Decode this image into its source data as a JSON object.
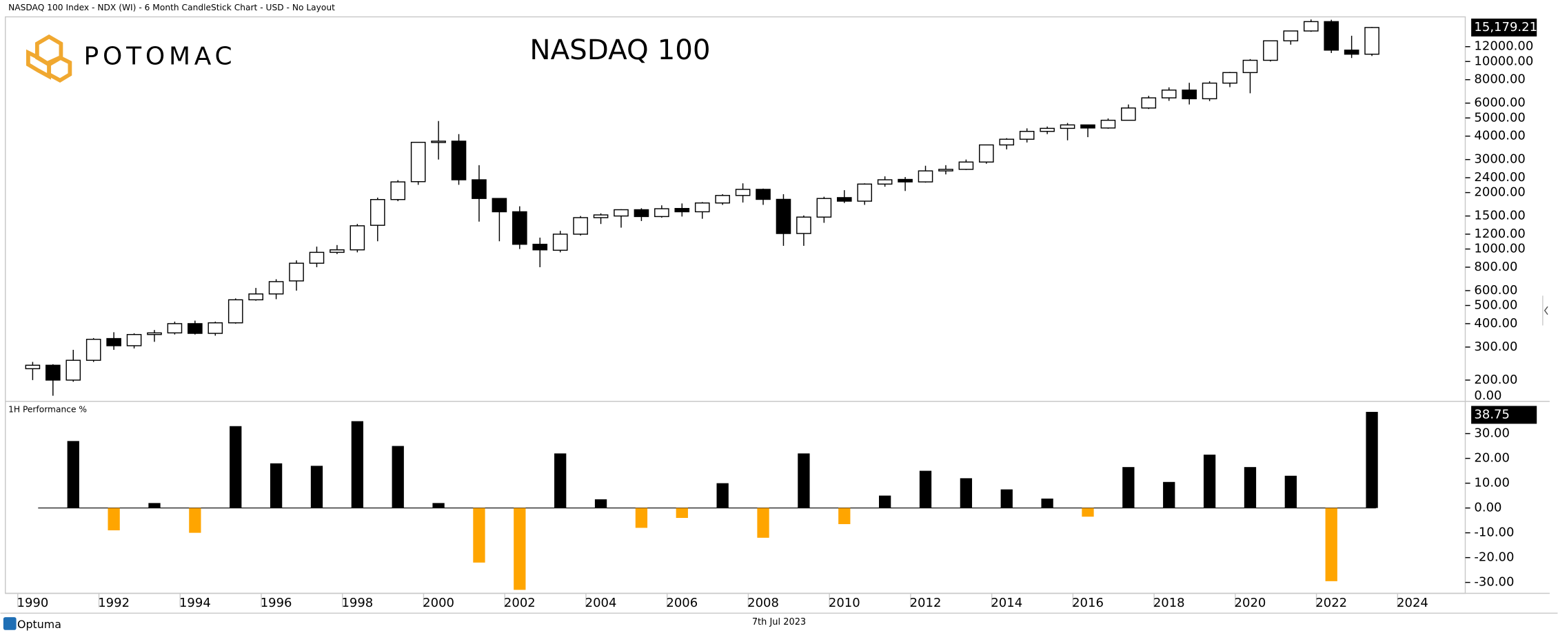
{
  "header": "NASDAQ 100 Index - NDX (WI) - 6 Month CandleStick Chart - USD - No Layout",
  "brand": "POTOMAC",
  "footer_brand": "Optuma",
  "date": "7th Jul 2023",
  "chart_data": [
    {
      "type": "candlestick",
      "title": "NASDAQ 100",
      "log_scale": true,
      "rising_color": "#ffffff",
      "falling_color": "#000000",
      "x": [
        1990,
        1990.5,
        1991,
        1991.5,
        1992,
        1992.5,
        1993,
        1993.5,
        1994,
        1994.5,
        1995,
        1995.5,
        1996,
        1996.5,
        1997,
        1997.5,
        1998,
        1998.5,
        1999,
        1999.5,
        2000,
        2000.5,
        2001,
        2001.5,
        2002,
        2002.5,
        2003,
        2003.5,
        2004,
        2004.5,
        2005,
        2005.5,
        2006,
        2006.5,
        2007,
        2007.5,
        2008,
        2008.5,
        2009,
        2009.5,
        2010,
        2010.5,
        2011,
        2011.5,
        2012,
        2012.5,
        2013,
        2013.5,
        2014,
        2014.5,
        2015,
        2015.5,
        2016,
        2016.5,
        2017,
        2017.5,
        2018,
        2018.5,
        2019,
        2019.5,
        2020,
        2020.5,
        2021,
        2021.5,
        2022,
        2022.5,
        2023
      ],
      "open": [
        230,
        240,
        200,
        255,
        333,
        305,
        350,
        357,
        400,
        355,
        404,
        536,
        576,
        676,
        840,
        960,
        990,
        1338,
        1836,
        2287,
        3700,
        3760,
        2340,
        1860,
        1580,
        1060,
        985,
        1200,
        1470,
        1500,
        1620,
        1490,
        1645,
        1580,
        1760,
        1930,
        2080,
        1840,
        1210,
        1480,
        1880,
        1800,
        2220,
        2350,
        2280,
        2610,
        2660,
        2910,
        3590,
        3850,
        4240,
        4400,
        4590,
        4420,
        4860,
        5650,
        6400,
        7040,
        6330,
        7670,
        8730,
        10150,
        12890,
        14550,
        16320,
        11500,
        10940
      ],
      "high": [
        250,
        243,
        290,
        335,
        360,
        355,
        370,
        410,
        415,
        410,
        545,
        620,
        690,
        870,
        1030,
        1050,
        1360,
        1880,
        2330,
        3720,
        4816,
        4100,
        2800,
        1860,
        1690,
        1150,
        1250,
        1500,
        1550,
        1630,
        1650,
        1710,
        1750,
        1780,
        1960,
        2240,
        2100,
        1960,
        1510,
        1900,
        2060,
        2240,
        2440,
        2420,
        2780,
        2800,
        3000,
        3600,
        3900,
        4400,
        4500,
        4700,
        4600,
        4970,
        5900,
        6560,
        7280,
        7700,
        7850,
        8800,
        10300,
        12900,
        14600,
        16760,
        16700,
        13720,
        15284
      ],
      "low": [
        200,
        165,
        196,
        250,
        290,
        295,
        320,
        350,
        350,
        345,
        400,
        530,
        540,
        600,
        800,
        940,
        960,
        1100,
        1800,
        2200,
        3000,
        2200,
        1400,
        1100,
        1000,
        800,
        960,
        1180,
        1360,
        1300,
        1410,
        1470,
        1490,
        1450,
        1720,
        1770,
        1720,
        1040,
        1040,
        1380,
        1760,
        1720,
        2150,
        2040,
        2260,
        2500,
        2640,
        2850,
        3400,
        3700,
        4100,
        3800,
        3950,
        4380,
        4850,
        5580,
        6170,
        5900,
        6150,
        7300,
        6770,
        10000,
        12300,
        14400,
        11100,
        10440,
        10700
      ],
      "close": [
        240,
        200,
        255,
        330,
        305,
        350,
        357,
        400,
        355,
        404,
        536,
        576,
        670,
        840,
        960,
        990,
        1330,
        1836,
        2280,
        3707,
        3760,
        2340,
        1860,
        1580,
        1060,
        990,
        1200,
        1470,
        1520,
        1620,
        1490,
        1640,
        1580,
        1760,
        1930,
        2080,
        1840,
        1210,
        1480,
        1860,
        1800,
        2220,
        2340,
        2280,
        2610,
        2660,
        2910,
        3590,
        3850,
        4240,
        4400,
        4590,
        4420,
        4860,
        5650,
        6400,
        7040,
        6330,
        7670,
        8730,
        10150,
        12890,
        14550,
        16320,
        11500,
        10940,
        15179.21
      ],
      "close_label": "15,179.21",
      "floor_label": "0.00",
      "xlim": [
        1989.4,
        2025.3
      ],
      "ylim": [
        155,
        17300
      ],
      "yticks": [
        {
          "value": 200,
          "label": "200.00"
        },
        {
          "value": 300,
          "label": "300.00"
        },
        {
          "value": 400,
          "label": "400.00"
        },
        {
          "value": 500,
          "label": "500.00"
        },
        {
          "value": 600,
          "label": "600.00"
        },
        {
          "value": 800,
          "label": "800.00"
        },
        {
          "value": 1000,
          "label": "1000.00"
        },
        {
          "value": 1200,
          "label": "1200.00"
        },
        {
          "value": 1500,
          "label": "1500.00"
        },
        {
          "value": 2000,
          "label": "2000.00"
        },
        {
          "value": 2400,
          "label": "2400.00"
        },
        {
          "value": 3000,
          "label": "3000.00"
        },
        {
          "value": 4000,
          "label": "4000.00"
        },
        {
          "value": 5000,
          "label": "5000.00"
        },
        {
          "value": 6000,
          "label": "6000.00"
        },
        {
          "value": 8000,
          "label": "8000.00"
        },
        {
          "value": 10000,
          "label": "10000.00"
        },
        {
          "value": 12000,
          "label": "12000.00"
        }
      ]
    },
    {
      "type": "bar",
      "title": "1H Performance %",
      "positive_color": "#000000",
      "negative_color": "#ffa500",
      "x": [
        1991,
        1992,
        1993,
        1994,
        1995,
        1996,
        1997,
        1998,
        1999,
        2000,
        2001,
        2002,
        2003,
        2004,
        2005,
        2006,
        2007,
        2008,
        2009,
        2010,
        2011,
        2012,
        2013,
        2014,
        2015,
        2016,
        2017,
        2018,
        2019,
        2020,
        2021,
        2022,
        2023
      ],
      "values": [
        27,
        -9,
        2,
        -10,
        33,
        18,
        17,
        35,
        25,
        2,
        -22,
        -33,
        22,
        3.5,
        -8,
        -4,
        10,
        -12,
        22,
        -6.5,
        5,
        15,
        12,
        7.5,
        3.8,
        -3.5,
        16.5,
        10.5,
        21.5,
        16.5,
        13,
        -29.5,
        38.75
      ],
      "last_label": "38.75",
      "xlim": [
        1989.4,
        2025.3
      ],
      "xticks": [
        1990,
        1992,
        1994,
        1996,
        1998,
        2000,
        2002,
        2004,
        2006,
        2008,
        2010,
        2012,
        2014,
        2016,
        2018,
        2020,
        2022,
        2024
      ],
      "ylim": [
        -34.4,
        42.8
      ],
      "yticks": [
        {
          "value": 30,
          "label": "30.00"
        },
        {
          "value": 20,
          "label": "20.00"
        },
        {
          "value": 10,
          "label": "10.00"
        },
        {
          "value": 0,
          "label": "0.00"
        },
        {
          "value": -10,
          "label": "-10.00"
        },
        {
          "value": -20,
          "label": "-20.00"
        },
        {
          "value": -30,
          "label": "-30.00"
        }
      ]
    }
  ]
}
